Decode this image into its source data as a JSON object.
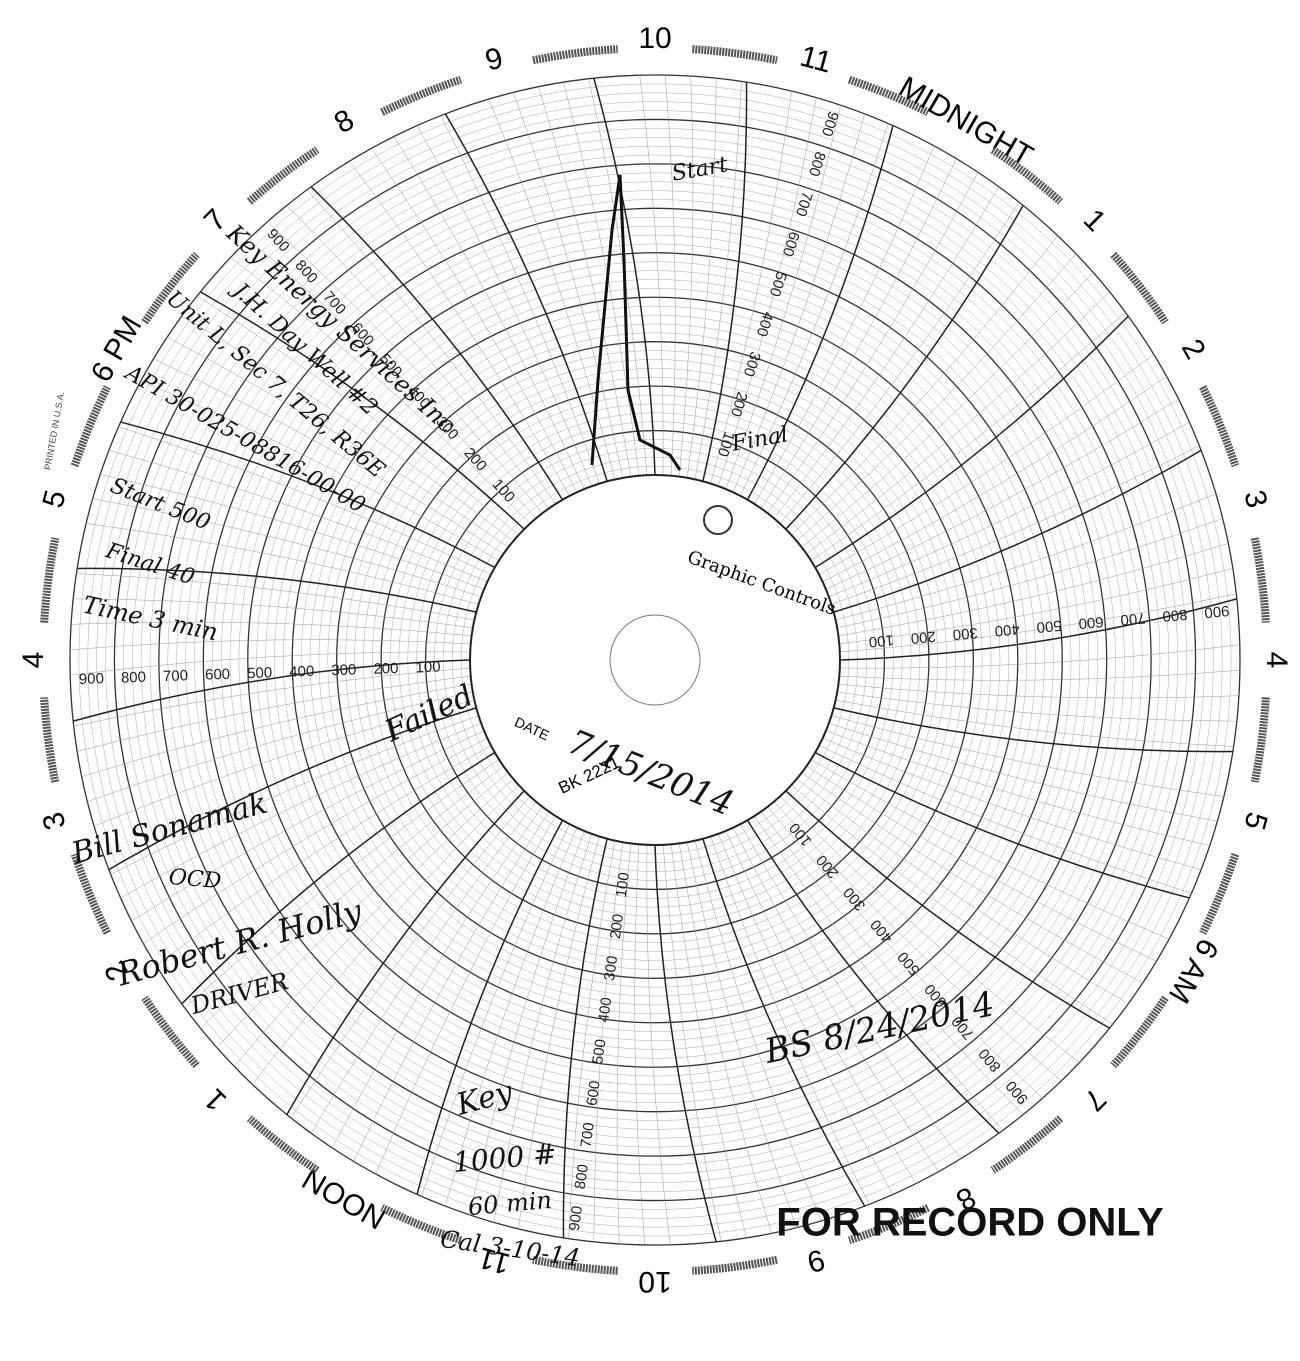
{
  "hour_labels": [
    "10",
    "11",
    "MIDNIGHT",
    "1",
    "2",
    "3",
    "4",
    "5",
    "6 AM",
    "7",
    "8",
    "9",
    "10",
    "11",
    "NOON",
    "1",
    "2",
    "3",
    "4",
    "5",
    "6 PM",
    "7",
    "8",
    "9"
  ],
  "scale_labels": [
    "100",
    "200",
    "300",
    "400",
    "500",
    "600",
    "700",
    "800",
    "900"
  ],
  "brand": "Graphic Controls",
  "date_label": "DATE",
  "chart_number": "BK 2221",
  "printed": "PRINTED IN U.S.A.",
  "stamp": "FOR RECORD ONLY",
  "notes": [
    "Start",
    "Final",
    "Key Energy Services Inc",
    "J.H. Day Well #2",
    "Unit L, Sec 7, T26, R36E",
    "API 30-025-08816-00-00",
    "Start 500",
    "Final 40",
    "Time 3 min",
    "Failed",
    "7/15/2014",
    "Bill Sonamak",
    "OCD",
    "Robert R. Holly",
    "DRIVER",
    "BS 8/24/2014",
    "Key",
    "1000 #",
    "60 min",
    "Cal 3-10-14"
  ]
}
